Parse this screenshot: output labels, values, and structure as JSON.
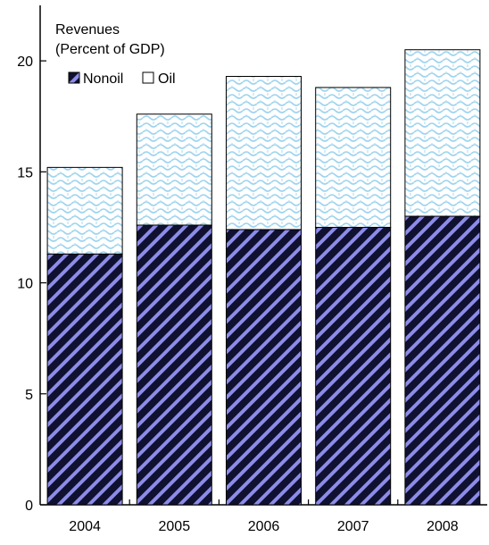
{
  "chart_data": {
    "type": "bar",
    "stacked": true,
    "title": "Revenues",
    "subtitle": "(Percent of GDP)",
    "categories": [
      "2004",
      "2005",
      "2006",
      "2007",
      "2008"
    ],
    "series": [
      {
        "name": "Nonoil",
        "values": [
          11.3,
          12.6,
          12.4,
          12.5,
          13.0
        ]
      },
      {
        "name": "Oil",
        "values": [
          3.9,
          5.0,
          6.9,
          6.3,
          7.5
        ]
      }
    ],
    "ylim": [
      0,
      22.5
    ],
    "yticks": [
      0,
      5,
      10,
      15,
      20
    ],
    "legend_position": "top-left",
    "grid": false
  }
}
